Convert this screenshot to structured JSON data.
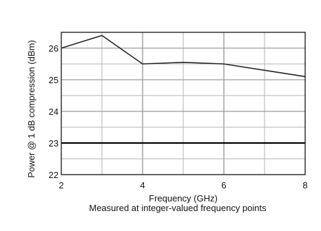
{
  "chart_data": {
    "type": "line",
    "title": "",
    "xlabel": "Frequency (GHz)",
    "ylabel": "Power @ 1 dB compression (dBm)",
    "caption": "Measured at integer-valued frequency points",
    "xlim": [
      2,
      8
    ],
    "ylim": [
      22,
      26.5
    ],
    "x_ticks": [
      2,
      4,
      6,
      8
    ],
    "y_ticks": [
      22,
      23,
      24,
      25,
      26
    ],
    "x_minor_step": 1,
    "y_minor_step": 0.5,
    "grid": true,
    "series": [
      {
        "x": [
          2,
          3,
          4,
          5,
          6,
          7,
          8
        ],
        "y": [
          26.0,
          26.4,
          25.5,
          25.55,
          25.5,
          25.3,
          25.1
        ],
        "color": "#222222"
      }
    ],
    "reference_lines": [
      {
        "y": 23.0,
        "color": "#000000"
      }
    ],
    "colors": {
      "grid_major": "#9a9a9a",
      "grid_minor": "#b3b3b3",
      "axes": "#222222",
      "background": "#ffffff"
    }
  }
}
